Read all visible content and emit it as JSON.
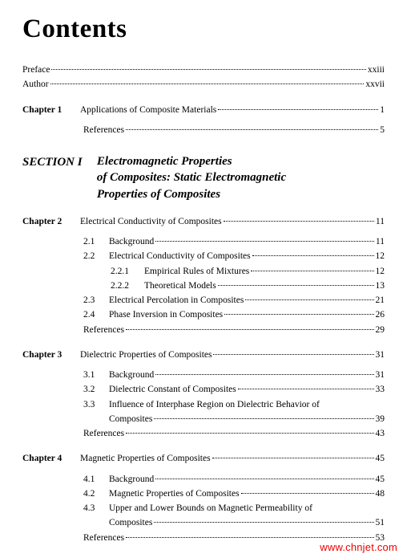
{
  "title": "Contents",
  "front": [
    {
      "label": "Preface",
      "page": "xxiii"
    },
    {
      "label": "Author",
      "page": "xxvii"
    }
  ],
  "ch1": {
    "label": "Chapter 1",
    "title": "Applications of Composite Materials",
    "page": "1",
    "refs": {
      "label": "References",
      "page": "5"
    }
  },
  "section1": {
    "label": "SECTION I",
    "title_l1": "Electromagnetic Properties",
    "title_l2": "of Composites: Static Electromagnetic",
    "title_l3": "Properties of Composites"
  },
  "ch2": {
    "label": "Chapter 2",
    "title": "Electrical Conductivity of Composites",
    "page": "11",
    "s1": {
      "num": "2.1",
      "label": "Background",
      "page": "11"
    },
    "s2": {
      "num": "2.2",
      "label": "Electrical Conductivity of Composites",
      "page": "12"
    },
    "s2_1": {
      "num": "2.2.1",
      "label": "Empirical Rules of Mixtures",
      "page": "12"
    },
    "s2_2": {
      "num": "2.2.2",
      "label": "Theoretical Models",
      "page": "13"
    },
    "s3": {
      "num": "2.3",
      "label": "Electrical Percolation in Composites",
      "page": "21"
    },
    "s4": {
      "num": "2.4",
      "label": "Phase Inversion in Composites",
      "page": "26"
    },
    "refs": {
      "label": "References",
      "page": "29"
    }
  },
  "ch3": {
    "label": "Chapter 3",
    "title": "Dielectric Properties of Composites",
    "page": "31",
    "s1": {
      "num": "3.1",
      "label": "Background",
      "page": "31"
    },
    "s2": {
      "num": "3.2",
      "label": "Dielectric Constant of Composites",
      "page": "33"
    },
    "s3": {
      "num": "3.3",
      "label_l1": "Influence of Interphase Region on Dielectric Behavior of",
      "label_l2": "Composites",
      "page": "39"
    },
    "refs": {
      "label": "References",
      "page": "43"
    }
  },
  "ch4": {
    "label": "Chapter 4",
    "title": "Magnetic Properties of Composites",
    "page": "45",
    "s1": {
      "num": "4.1",
      "label": "Background",
      "page": "45"
    },
    "s2": {
      "num": "4.2",
      "label": "Magnetic Properties of Composites",
      "page": "48"
    },
    "s3": {
      "num": "4.3",
      "label_l1": "Upper and Lower Bounds on Magnetic Permeability of",
      "label_l2": "Composites",
      "page": "51"
    },
    "refs": {
      "label": "References",
      "page": "53"
    }
  },
  "watermark": "www.chnjet.com"
}
